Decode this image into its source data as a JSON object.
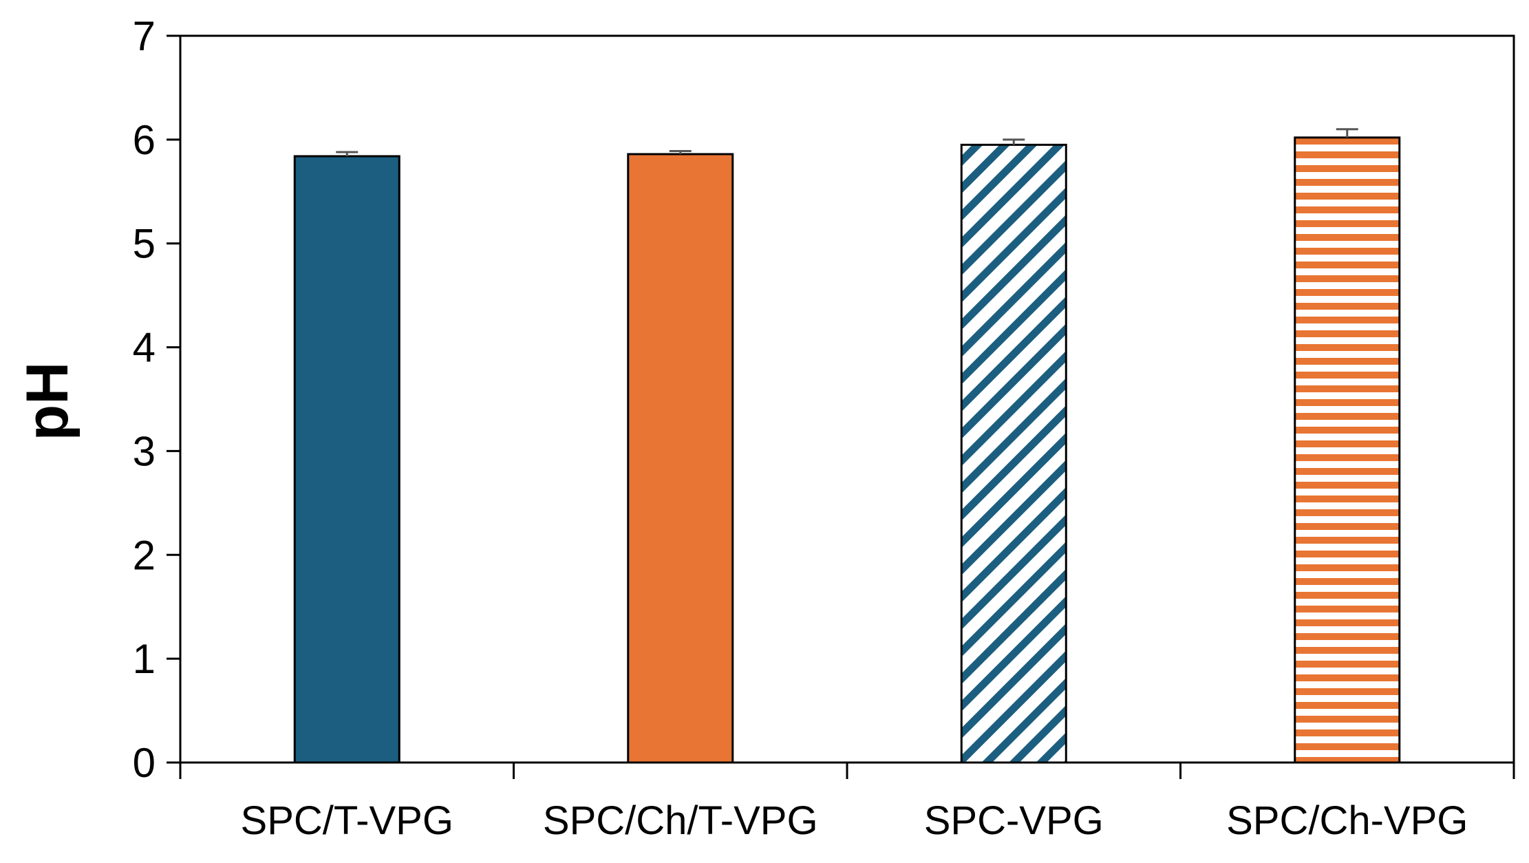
{
  "chart_data": {
    "type": "bar",
    "title": "",
    "xlabel": "",
    "ylabel": "pH",
    "ylim": [
      0,
      7
    ],
    "yticks": [
      "0",
      "1",
      "2",
      "3",
      "4",
      "5",
      "6",
      "7"
    ],
    "categories": [
      "SPC/T-VPG",
      "SPC/Ch/T-VPG",
      "SPC-VPG",
      "SPC/Ch-VPG"
    ],
    "values": [
      5.84,
      5.86,
      5.95,
      6.02
    ],
    "errors": [
      0.04,
      0.03,
      0.05,
      0.08
    ],
    "fills": [
      "solid",
      "solid",
      "diagonal-stripes",
      "horizontal-stripes"
    ],
    "colors": [
      "#1b5e80",
      "#e87533",
      "#1b5e80",
      "#e87533"
    ],
    "grid": false,
    "legend": "none"
  }
}
